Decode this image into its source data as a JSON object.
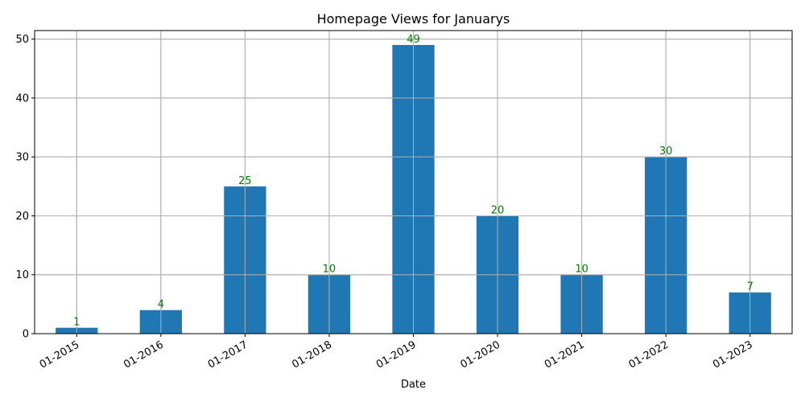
{
  "chart_data": {
    "type": "bar",
    "title": "Homepage Views for Januarys",
    "xlabel": "Date",
    "ylabel": "",
    "categories": [
      "01-2015",
      "01-2016",
      "01-2017",
      "01-2018",
      "01-2019",
      "01-2020",
      "01-2021",
      "01-2022",
      "01-2023"
    ],
    "values": [
      1,
      4,
      25,
      10,
      49,
      20,
      10,
      30,
      7
    ],
    "ylim": [
      0,
      51.45
    ],
    "yticks": [
      0,
      10,
      20,
      30,
      40,
      50
    ],
    "grid": true,
    "bar_color": "#1f77b4",
    "label_color": "#008000",
    "x_tick_rotation": 30
  }
}
